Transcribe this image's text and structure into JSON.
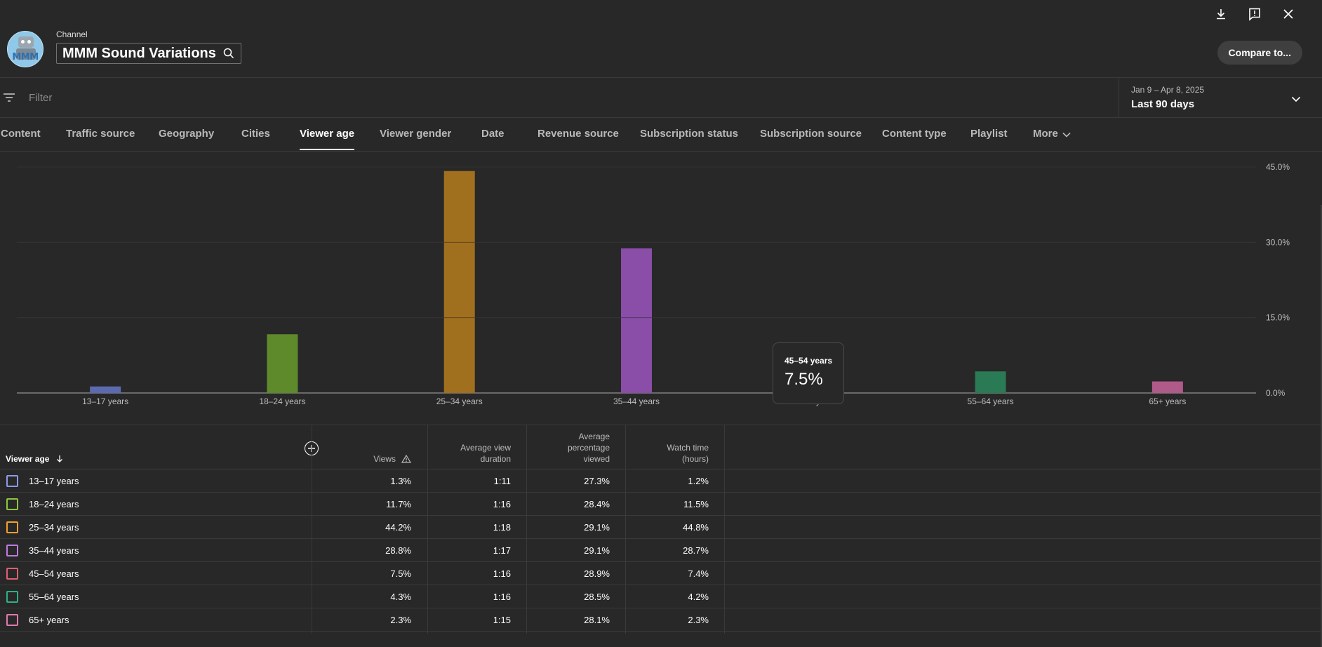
{
  "channel": {
    "label": "Channel",
    "name": "MMM Sound Variations",
    "avatar_text": "MMM"
  },
  "compare_button": "Compare to...",
  "filter": {
    "placeholder": "Filter"
  },
  "date_range": {
    "sub": "Jan 9 – Apr 8, 2025",
    "main": "Last 90 days"
  },
  "tabs": [
    {
      "label": "Content"
    },
    {
      "label": "Traffic source"
    },
    {
      "label": "Geography"
    },
    {
      "label": "Cities"
    },
    {
      "label": "Viewer age",
      "active": true
    },
    {
      "label": "Viewer gender"
    },
    {
      "label": "Date"
    },
    {
      "label": "Revenue source"
    },
    {
      "label": "Subscription status"
    },
    {
      "label": "Subscription source"
    },
    {
      "label": "Content type"
    },
    {
      "label": "Playlist"
    },
    {
      "label": "More"
    }
  ],
  "chart_data": {
    "type": "bar",
    "categories": [
      "13–17 years",
      "18–24 years",
      "25–34 years",
      "35–44 years",
      "45–54 years",
      "55–64 years",
      "65+ years"
    ],
    "values": [
      1.3,
      11.7,
      44.2,
      28.8,
      7.5,
      4.3,
      2.3
    ],
    "colors": [
      "#5c6bb0",
      "#5e8a2b",
      "#a0701e",
      "#8a4ea8",
      "#b5434f",
      "#2a7a55",
      "#b05a8a"
    ],
    "yticks": [
      "0.0%",
      "15.0%",
      "30.0%",
      "45.0%"
    ],
    "ylim": [
      0,
      45
    ],
    "grid": true
  },
  "tooltip": {
    "label": "45–54 years",
    "value": "7.5%"
  },
  "table": {
    "headers": {
      "age": "Viewer age",
      "views": "Views",
      "avd_1": "Average view",
      "avd_2": "duration",
      "apv_1": "Average",
      "apv_2": "percentage",
      "apv_3": "viewed",
      "wt_1": "Watch time",
      "wt_2": "(hours)"
    },
    "rows": [
      {
        "age": "13–17 years",
        "views": "1.3%",
        "avd": "1:11",
        "apv": "27.3%",
        "wt": "1.2%",
        "color": "#8c9ae8"
      },
      {
        "age": "18–24 years",
        "views": "11.7%",
        "avd": "1:16",
        "apv": "28.4%",
        "wt": "11.5%",
        "color": "#8cc63f"
      },
      {
        "age": "25–34 years",
        "views": "44.2%",
        "avd": "1:18",
        "apv": "29.1%",
        "wt": "44.8%",
        "color": "#f0a030"
      },
      {
        "age": "35–44 years",
        "views": "28.8%",
        "avd": "1:17",
        "apv": "29.1%",
        "wt": "28.7%",
        "color": "#c07ae0"
      },
      {
        "age": "45–54 years",
        "views": "7.5%",
        "avd": "1:16",
        "apv": "28.9%",
        "wt": "7.4%",
        "color": "#e06070"
      },
      {
        "age": "55–64 years",
        "views": "4.3%",
        "avd": "1:16",
        "apv": "28.5%",
        "wt": "4.2%",
        "color": "#30b080"
      },
      {
        "age": "65+ years",
        "views": "2.3%",
        "avd": "1:15",
        "apv": "28.1%",
        "wt": "2.3%",
        "color": "#e07ab0"
      }
    ]
  }
}
